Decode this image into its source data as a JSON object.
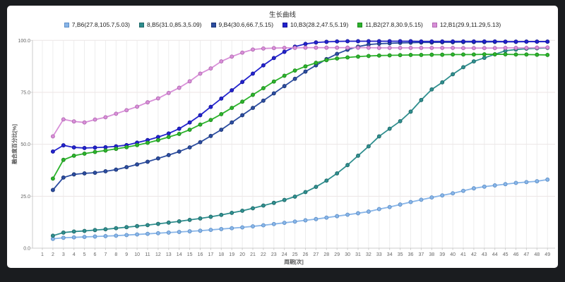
{
  "window": {
    "frame_color": "#1a1c1f",
    "panel_color": "#ffffff"
  },
  "chart_data": {
    "type": "line",
    "title": "生长曲线",
    "xlabel": "周期[次]",
    "ylabel": "融合度百分比[%]",
    "xlim": [
      1,
      49
    ],
    "ylim": [
      0,
      100
    ],
    "grid": true,
    "legend_position": "top",
    "y_ticks": [
      0,
      25,
      50,
      75,
      100
    ],
    "y_tick_labels": [
      "0.0",
      "25.0",
      "50.0",
      "75.0",
      "100.0"
    ],
    "x_ticks": [
      1,
      2,
      3,
      4,
      5,
      6,
      7,
      8,
      9,
      10,
      11,
      12,
      13,
      14,
      15,
      16,
      17,
      18,
      19,
      20,
      21,
      22,
      23,
      24,
      25,
      26,
      27,
      28,
      29,
      30,
      31,
      32,
      33,
      34,
      35,
      36,
      37,
      38,
      39,
      40,
      41,
      42,
      43,
      44,
      45,
      46,
      47,
      48,
      49
    ],
    "x": [
      2,
      3,
      4,
      5,
      6,
      7,
      8,
      9,
      10,
      11,
      12,
      13,
      14,
      15,
      16,
      17,
      18,
      19,
      20,
      21,
      22,
      23,
      24,
      25,
      26,
      27,
      28,
      29,
      30,
      31,
      32,
      33,
      34,
      35,
      36,
      37,
      38,
      39,
      40,
      41,
      42,
      43,
      44,
      45,
      46,
      47,
      48,
      49
    ],
    "series": [
      {
        "name": "7,B6(27.8,105.7,5.03)",
        "color": "#88b5e8",
        "edge": "#5d8fc7",
        "values": [
          4.5,
          5.0,
          5.2,
          5.4,
          5.6,
          5.8,
          6.0,
          6.3,
          6.6,
          6.9,
          7.2,
          7.5,
          7.8,
          8.1,
          8.4,
          8.8,
          9.2,
          9.6,
          10.0,
          10.5,
          11.0,
          11.6,
          12.2,
          12.8,
          13.4,
          14.0,
          14.7,
          15.4,
          16.1,
          16.8,
          17.6,
          18.8,
          19.8,
          21.0,
          22.2,
          23.3,
          24.4,
          25.4,
          26.4,
          27.6,
          28.8,
          29.6,
          30.2,
          30.8,
          31.4,
          31.8,
          32.2,
          33.0
        ]
      },
      {
        "name": "8,B5(31.0,85.3,5.09)",
        "color": "#2f8e8e",
        "edge": "#1e6868",
        "values": [
          6.0,
          7.5,
          8.0,
          8.3,
          8.7,
          9.1,
          9.6,
          10.1,
          10.6,
          11.1,
          11.7,
          12.3,
          12.9,
          13.6,
          14.3,
          15.1,
          16.0,
          17.0,
          18.0,
          19.2,
          20.5,
          21.8,
          23.2,
          24.8,
          27.0,
          29.5,
          32.5,
          36.0,
          40.0,
          44.5,
          49.0,
          53.8,
          57.5,
          61.1,
          65.7,
          71.3,
          76.4,
          79.8,
          83.7,
          87.1,
          89.9,
          91.6,
          93.3,
          95.0,
          95.6,
          96.0,
          96.2,
          96.4
        ]
      },
      {
        "name": "9,B4(30.6,66.7,5.15)",
        "color": "#2c4da0",
        "edge": "#1b3474",
        "values": [
          28.0,
          34.0,
          35.5,
          36.0,
          36.3,
          37.0,
          37.8,
          39.0,
          40.3,
          41.6,
          43.2,
          44.8,
          46.5,
          48.5,
          51.0,
          54.0,
          57.0,
          60.5,
          64.0,
          67.5,
          71.0,
          74.5,
          78.0,
          81.5,
          85.0,
          88.0,
          91.0,
          93.5,
          95.5,
          97.0,
          98.0,
          98.4,
          98.6,
          98.8,
          98.9,
          99.0,
          99.0,
          99.1,
          99.1,
          99.2,
          99.2,
          99.2,
          99.3,
          99.3,
          99.3,
          99.4,
          99.4,
          99.4
        ]
      },
      {
        "name": "10,B3(28.2,47.5,5.19)",
        "color": "#2323cd",
        "edge": "#15159b",
        "values": [
          46.5,
          49.5,
          48.5,
          48.2,
          48.4,
          48.6,
          49.0,
          49.6,
          50.8,
          52.0,
          53.5,
          55.2,
          57.5,
          60.5,
          64.0,
          68.0,
          72.0,
          76.0,
          80.0,
          84.0,
          88.0,
          91.5,
          94.5,
          97.0,
          98.3,
          99.0,
          99.3,
          99.5,
          99.6,
          99.6,
          99.6,
          99.6,
          99.6,
          99.6,
          99.6,
          99.5,
          99.5,
          99.5,
          99.5,
          99.5,
          99.5,
          99.5,
          99.5,
          99.4,
          99.4,
          99.4,
          99.4,
          99.4
        ]
      },
      {
        "name": "11,B2(27.8,30.9,5.15)",
        "color": "#2cb32c",
        "edge": "#1d8a1d",
        "values": [
          33.5,
          42.5,
          44.5,
          45.5,
          46.3,
          47.0,
          47.8,
          48.6,
          49.6,
          50.7,
          52.0,
          53.5,
          55.0,
          57.0,
          59.5,
          61.7,
          64.5,
          67.5,
          70.5,
          73.8,
          77.0,
          80.2,
          83.0,
          85.5,
          87.5,
          89.2,
          90.5,
          91.3,
          91.8,
          92.2,
          92.5,
          92.7,
          92.8,
          92.9,
          93.0,
          93.0,
          93.1,
          93.1,
          93.2,
          93.2,
          93.2,
          93.3,
          93.3,
          93.3,
          93.2,
          93.2,
          93.1,
          93.0
        ]
      },
      {
        "name": "12,B1(29.9,11.29,5.13)",
        "color": "#d88fd8",
        "edge": "#b168b1",
        "values": [
          53.8,
          62.0,
          61.0,
          60.5,
          61.9,
          63.0,
          64.7,
          66.4,
          68.1,
          70.2,
          72.1,
          74.7,
          77.2,
          80.3,
          84.0,
          86.5,
          89.9,
          92.2,
          94.1,
          95.6,
          96.1,
          96.3,
          96.4,
          96.4,
          96.5,
          96.5,
          96.5,
          96.5,
          96.5,
          96.5,
          96.5,
          96.4,
          96.4,
          96.4,
          96.4,
          96.4,
          96.4,
          96.4,
          96.4,
          96.3,
          96.3,
          96.3,
          96.3,
          96.4,
          96.4,
          96.4,
          96.5,
          96.6
        ]
      }
    ],
    "style": {
      "v_grid_color": "#ededed",
      "h_grid_color": "#ece5e5",
      "axis_color": "#cccccc",
      "tick_label_color": "#666666",
      "axis_title_color": "#555555"
    }
  }
}
